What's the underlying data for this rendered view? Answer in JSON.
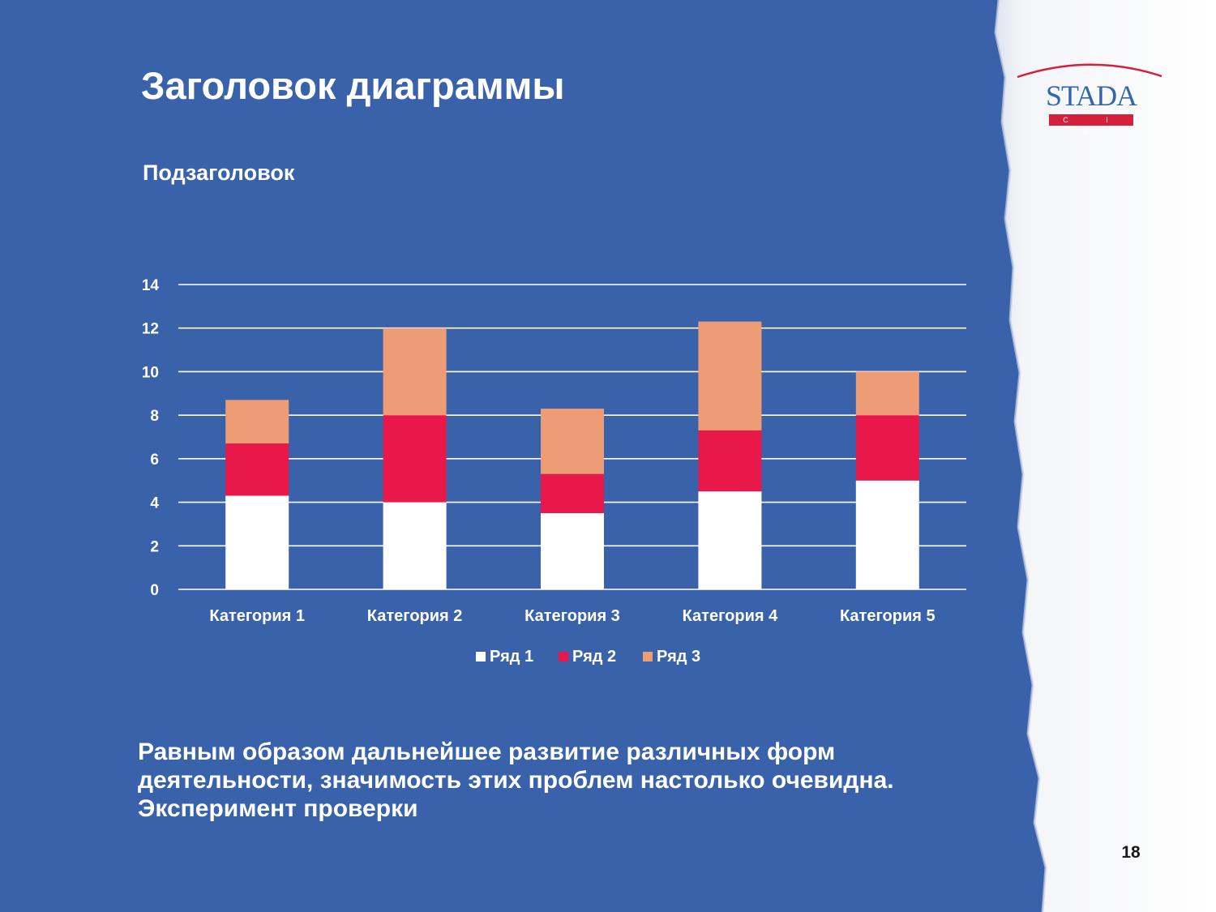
{
  "slide": {
    "title": "Заголовок диаграммы",
    "subtitle": "Подзаголовок",
    "body_text": "Равным образом дальнейшее развитие различных форм деятельности, значимость этих проблем настолько очевидна. Эксперимент проверки",
    "page_number": "18"
  },
  "logo": {
    "wordmark": "STADA",
    "tagline": "C I S",
    "colors": {
      "wordmark": "#3565ad",
      "accent": "#d4203d"
    }
  },
  "colors": {
    "background": "#3a62ab",
    "paper": "#f4f5f8",
    "text": "#ffffff",
    "gridlines": "#ffffff"
  },
  "chart_data": {
    "type": "bar",
    "stacked": true,
    "categories": [
      "Категория 1",
      "Категория 2",
      "Категория 3",
      "Категория 4",
      "Категория 5"
    ],
    "series": [
      {
        "name": "Ряд 1",
        "values": [
          4.3,
          4.0,
          3.5,
          4.5,
          5.0
        ],
        "color": "#ffffff"
      },
      {
        "name": "Ряд 2",
        "values": [
          2.4,
          4.0,
          1.8,
          2.8,
          3.0
        ],
        "color": "#e8194a"
      },
      {
        "name": "Ряд 3",
        "values": [
          2.0,
          4.0,
          3.0,
          5.0,
          2.0
        ],
        "color": "#ee9c76"
      }
    ],
    "yticks": [
      "0",
      "2",
      "4",
      "6",
      "8",
      "10",
      "12",
      "14"
    ],
    "ylim": [
      0,
      14
    ],
    "grid": true,
    "legend_position": "bottom"
  }
}
